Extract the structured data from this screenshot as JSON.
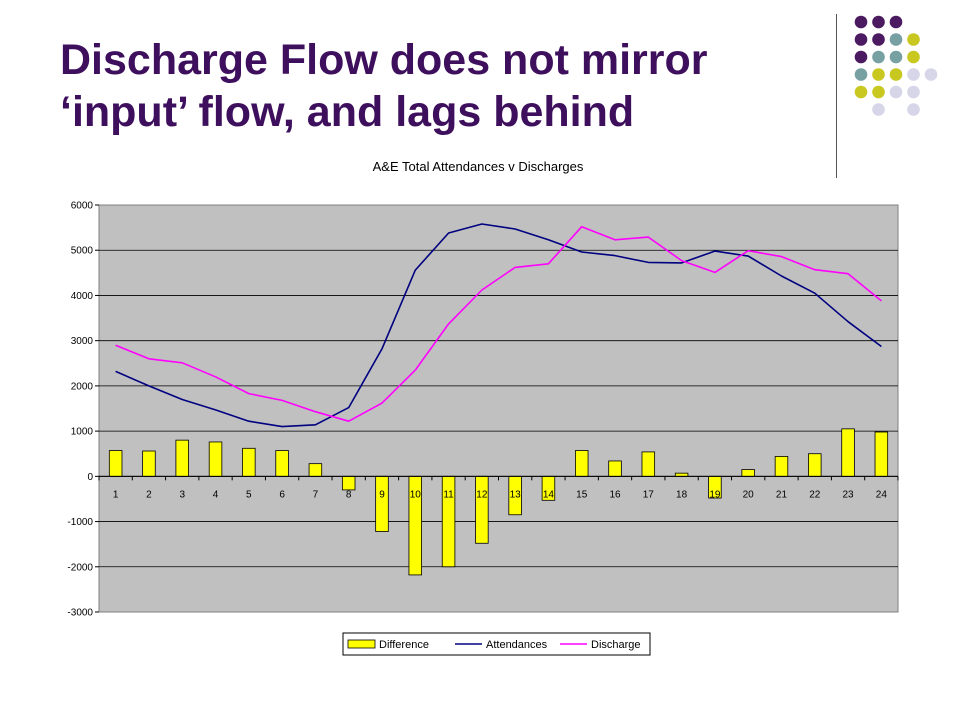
{
  "slide": {
    "title_line1": "Discharge Flow does not mirror",
    "title_line2": "‘input’ flow, and lags behind"
  },
  "decor": {
    "dot_colors": {
      "purple": "#4b1a60",
      "teal": "#77a0a3",
      "olive": "#c8c820",
      "lavender": "#d6d6e8"
    },
    "dot_grid": [
      [
        "purple",
        "purple",
        "purple",
        null,
        null
      ],
      [
        "purple",
        "purple",
        "teal",
        "olive",
        null
      ],
      [
        "purple",
        "teal",
        "teal",
        "olive",
        null
      ],
      [
        "teal",
        "olive",
        "olive",
        "lavender",
        "lavender"
      ],
      [
        "olive",
        "olive",
        "lavender",
        "lavender",
        null
      ],
      [
        null,
        "lavender",
        null,
        "lavender",
        null
      ]
    ]
  },
  "chart_data": {
    "type": "bar+line",
    "title": "A&E Total Attendances v Discharges",
    "xlabel": "",
    "ylabel": "",
    "categories": [
      "1",
      "2",
      "3",
      "4",
      "5",
      "6",
      "7",
      "8",
      "9",
      "10",
      "11",
      "12",
      "13",
      "14",
      "15",
      "16",
      "17",
      "18",
      "19",
      "20",
      "21",
      "22",
      "23",
      "24"
    ],
    "ylim": [
      -3000,
      6000
    ],
    "yticks": [
      6000,
      5000,
      4000,
      3000,
      2000,
      1000,
      0,
      -1000,
      -2000,
      -3000
    ],
    "ytick_labels": [
      "6000",
      "5000",
      "4000",
      "3000",
      "2000",
      "1000",
      "0",
      "-1000",
      "-2000",
      "-3000"
    ],
    "grid": true,
    "legend_position": "bottom",
    "plot_background": "#c0c0c0",
    "series": [
      {
        "name": "Difference",
        "type": "bar",
        "color": "#ffff00",
        "values": [
          570,
          560,
          800,
          760,
          620,
          570,
          280,
          -300,
          -1220,
          -2180,
          -2000,
          -1480,
          -850,
          -530,
          570,
          340,
          540,
          70,
          -480,
          150,
          440,
          500,
          1050,
          980
        ]
      },
      {
        "name": "Attendances",
        "type": "line",
        "color": "#000080",
        "values": [
          2320,
          2000,
          1700,
          1470,
          1220,
          1100,
          1140,
          1520,
          2820,
          4560,
          5380,
          5580,
          5470,
          5230,
          4960,
          4880,
          4730,
          4720,
          4980,
          4870,
          4430,
          4050,
          3420,
          2870
        ]
      },
      {
        "name": "Discharge",
        "type": "line",
        "color": "#ff00ff",
        "values": [
          2900,
          2600,
          2510,
          2200,
          1830,
          1680,
          1430,
          1220,
          1620,
          2350,
          3370,
          4120,
          4620,
          4700,
          5520,
          5230,
          5290,
          4770,
          4510,
          4990,
          4860,
          4570,
          4480,
          3880
        ]
      }
    ]
  }
}
